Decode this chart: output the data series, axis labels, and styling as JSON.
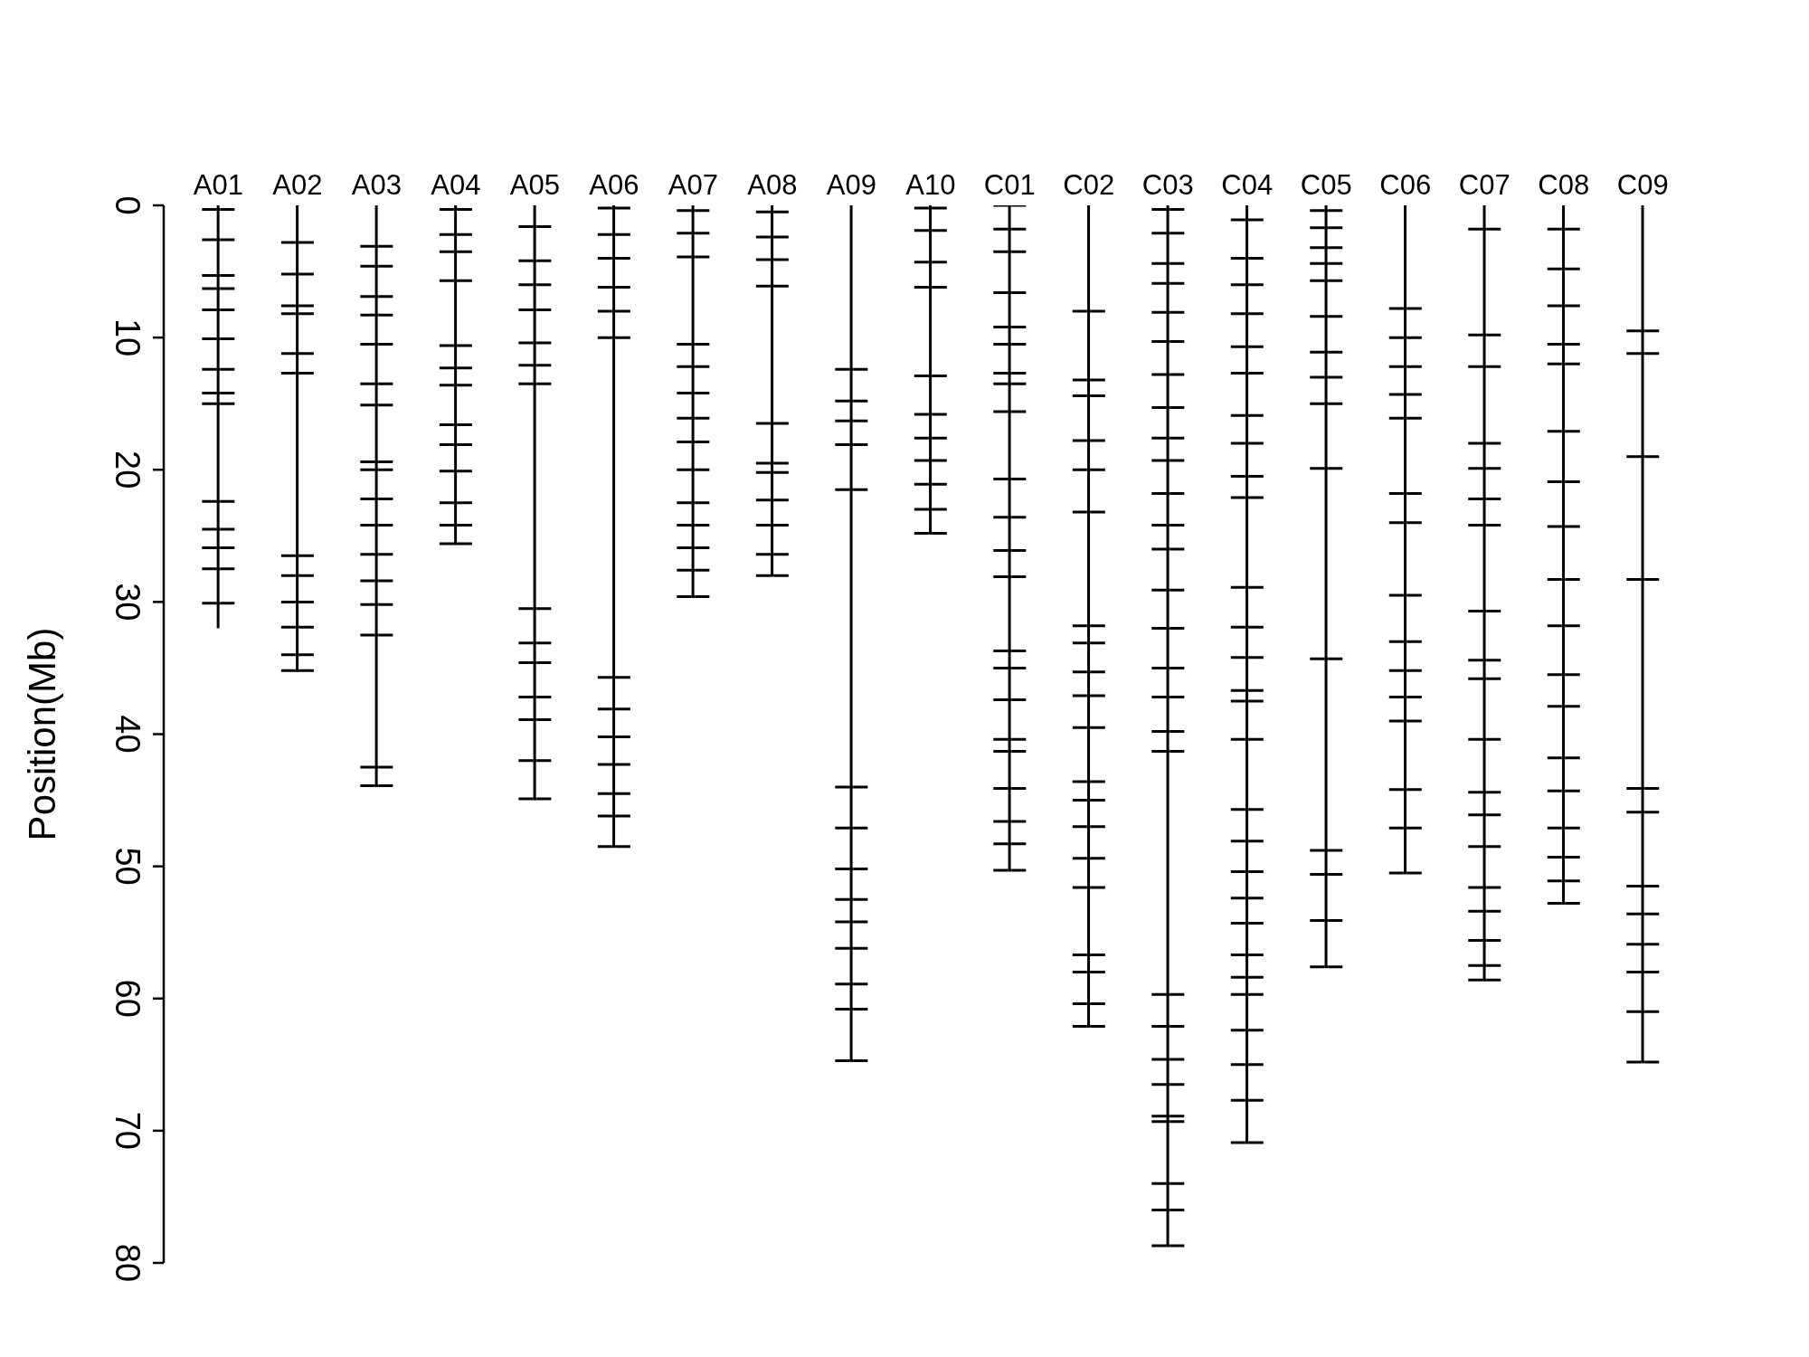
{
  "chart_data": {
    "type": "bar",
    "ylabel": "Position(Mb)",
    "categories": [
      "A01",
      "A02",
      "A03",
      "A04",
      "A05",
      "A06",
      "A07",
      "A08",
      "A09",
      "A10",
      "C01",
      "C02",
      "C03",
      "C04",
      "C05",
      "C06",
      "C07",
      "C08",
      "C09"
    ],
    "ylim": [
      80,
      0
    ],
    "yticks": [
      0,
      10,
      20,
      30,
      40,
      50,
      60,
      70,
      80
    ],
    "series": [
      {
        "color": "#000000",
        "values": [
          32.0,
          35.2,
          43.9,
          25.6,
          44.9,
          48.5,
          29.6,
          28.0,
          64.7,
          24.8,
          50.3,
          62.1,
          78.7,
          70.9,
          57.6,
          50.5,
          58.6,
          52.8,
          64.8
        ]
      },
      {
        "type": "scatter",
        "color": "#000000",
        "x": [
          "A01",
          "A01",
          "A01",
          "A01",
          "A01",
          "A01",
          "A01",
          "A01",
          "A01",
          "A01",
          "A01",
          "A01",
          "A01",
          "A01",
          "A02",
          "A02",
          "A02",
          "A02",
          "A02",
          "A02",
          "A02",
          "A02",
          "A02",
          "A02",
          "A02",
          "A02",
          "A03",
          "A03",
          "A03",
          "A03",
          "A03",
          "A03",
          "A03",
          "A03",
          "A03",
          "A03",
          "A03",
          "A03",
          "A03",
          "A03",
          "A03",
          "A03",
          "A03",
          "A04",
          "A04",
          "A04",
          "A04",
          "A04",
          "A04",
          "A04",
          "A04",
          "A04",
          "A04",
          "A04",
          "A04",
          "A04",
          "A05",
          "A05",
          "A05",
          "A05",
          "A05",
          "A05",
          "A05",
          "A05",
          "A05",
          "A05",
          "A05",
          "A05",
          "A05",
          "A05",
          "A06",
          "A06",
          "A06",
          "A06",
          "A06",
          "A06",
          "A06",
          "A06",
          "A06",
          "A06",
          "A06",
          "A06",
          "A06",
          "A07",
          "A07",
          "A07",
          "A07",
          "A07",
          "A07",
          "A07",
          "A07",
          "A07",
          "A07",
          "A07",
          "A07",
          "A07",
          "A07",
          "A08",
          "A08",
          "A08",
          "A08",
          "A08",
          "A08",
          "A08",
          "A08",
          "A08",
          "A08",
          "A08",
          "A09",
          "A09",
          "A09",
          "A09",
          "A09",
          "A09",
          "A09",
          "A09",
          "A09",
          "A09",
          "A09",
          "A09",
          "A09",
          "A09",
          "A10",
          "A10",
          "A10",
          "A10",
          "A10",
          "A10",
          "A10",
          "A10",
          "A10",
          "A10",
          "A10",
          "C01",
          "C01",
          "C01",
          "C01",
          "C01",
          "C01",
          "C01",
          "C01",
          "C01",
          "C01",
          "C01",
          "C01",
          "C01",
          "C01",
          "C01",
          "C01",
          "C01",
          "C01",
          "C01",
          "C01",
          "C01",
          "C01",
          "C02",
          "C02",
          "C02",
          "C02",
          "C02",
          "C02",
          "C02",
          "C02",
          "C02",
          "C02",
          "C02",
          "C02",
          "C02",
          "C02",
          "C02",
          "C02",
          "C02",
          "C02",
          "C02",
          "C02",
          "C03",
          "C03",
          "C03",
          "C03",
          "C03",
          "C03",
          "C03",
          "C03",
          "C03",
          "C03",
          "C03",
          "C03",
          "C03",
          "C03",
          "C03",
          "C03",
          "C03",
          "C03",
          "C03",
          "C03",
          "C03",
          "C03",
          "C03",
          "C03",
          "C03",
          "C03",
          "C03",
          "C03",
          "C04",
          "C04",
          "C04",
          "C04",
          "C04",
          "C04",
          "C04",
          "C04",
          "C04",
          "C04",
          "C04",
          "C04",
          "C04",
          "C04",
          "C04",
          "C04",
          "C04",
          "C04",
          "C04",
          "C04",
          "C04",
          "C04",
          "C04",
          "C04",
          "C04",
          "C04",
          "C04",
          "C04",
          "C05",
          "C05",
          "C05",
          "C05",
          "C05",
          "C05",
          "C05",
          "C05",
          "C05",
          "C05",
          "C05",
          "C05",
          "C05",
          "C05",
          "C05",
          "C06",
          "C06",
          "C06",
          "C06",
          "C06",
          "C06",
          "C06",
          "C06",
          "C06",
          "C06",
          "C06",
          "C06",
          "C06",
          "C06",
          "C06",
          "C07",
          "C07",
          "C07",
          "C07",
          "C07",
          "C07",
          "C07",
          "C07",
          "C07",
          "C07",
          "C07",
          "C07",
          "C07",
          "C07",
          "C07",
          "C07",
          "C07",
          "C07",
          "C07",
          "C08",
          "C08",
          "C08",
          "C08",
          "C08",
          "C08",
          "C08",
          "C08",
          "C08",
          "C08",
          "C08",
          "C08",
          "C08",
          "C08",
          "C08",
          "C08",
          "C08",
          "C08",
          "C09",
          "C09",
          "C09",
          "C09",
          "C09",
          "C09",
          "C09",
          "C09",
          "C09",
          "C09",
          "C09",
          "C09"
        ],
        "values": [
          0.3,
          2.6,
          5.3,
          6.3,
          7.9,
          10.1,
          12.4,
          14.2,
          15.0,
          22.4,
          24.5,
          25.9,
          27.5,
          30.1,
          2.8,
          5.2,
          7.6,
          8.2,
          11.2,
          12.7,
          26.5,
          28.0,
          30.0,
          31.9,
          34.0,
          35.2,
          3.1,
          4.6,
          6.9,
          8.3,
          10.5,
          13.5,
          15.1,
          19.4,
          20.0,
          22.2,
          24.2,
          26.4,
          28.4,
          30.2,
          32.5,
          42.5,
          43.9,
          0.3,
          2.2,
          3.5,
          5.7,
          10.6,
          12.3,
          13.6,
          16.6,
          18.1,
          20.1,
          22.5,
          24.2,
          25.6,
          1.6,
          4.2,
          6.0,
          7.9,
          10.4,
          12.1,
          13.5,
          30.5,
          33.1,
          34.6,
          37.2,
          38.9,
          42.0,
          44.9,
          0.2,
          2.2,
          4.0,
          6.2,
          8.0,
          10.0,
          35.7,
          38.1,
          40.2,
          42.3,
          44.5,
          46.2,
          48.5,
          0.4,
          2.1,
          3.9,
          10.5,
          12.2,
          14.2,
          16.1,
          17.9,
          20.0,
          22.5,
          24.2,
          25.9,
          27.6,
          29.6,
          0.5,
          2.4,
          4.1,
          6.1,
          16.5,
          19.5,
          20.2,
          22.3,
          24.2,
          26.4,
          28.0,
          12.4,
          14.8,
          16.3,
          18.1,
          21.5,
          44.0,
          47.1,
          50.2,
          52.5,
          54.2,
          56.2,
          58.9,
          60.8,
          64.7,
          0.2,
          1.9,
          4.3,
          6.2,
          12.9,
          15.8,
          17.6,
          19.3,
          21.1,
          23.0,
          24.8,
          0.0,
          1.8,
          3.5,
          6.6,
          9.2,
          10.5,
          12.7,
          13.5,
          15.6,
          20.7,
          23.6,
          26.1,
          28.1,
          33.7,
          35.0,
          37.4,
          40.4,
          41.3,
          44.1,
          46.6,
          48.3,
          50.3,
          8.0,
          13.2,
          14.4,
          17.8,
          20.0,
          23.2,
          31.8,
          33.1,
          35.3,
          37.1,
          39.5,
          43.6,
          45.0,
          47.0,
          49.4,
          51.6,
          56.7,
          58.0,
          60.4,
          62.1,
          0.3,
          2.1,
          4.4,
          5.9,
          8.1,
          10.3,
          12.8,
          15.3,
          17.6,
          19.3,
          21.8,
          24.2,
          26.0,
          29.1,
          32.0,
          35.0,
          37.2,
          39.8,
          41.3,
          59.7,
          62.1,
          64.6,
          66.5,
          68.9,
          69.3,
          74.0,
          76.0,
          78.7,
          1.1,
          4.0,
          6.0,
          8.2,
          10.7,
          12.7,
          15.9,
          18.0,
          20.5,
          22.1,
          28.9,
          31.9,
          34.2,
          36.7,
          37.5,
          40.4,
          45.7,
          48.1,
          50.4,
          52.4,
          54.3,
          56.7,
          58.4,
          59.7,
          62.4,
          65.0,
          67.7,
          70.9,
          0.4,
          1.7,
          3.2,
          4.4,
          5.7,
          8.4,
          11.1,
          13.0,
          15.0,
          19.9,
          34.3,
          48.8,
          50.6,
          54.1,
          57.6,
          7.8,
          10.0,
          12.2,
          14.3,
          16.1,
          21.8,
          24.0,
          29.5,
          33.0,
          35.2,
          37.2,
          39.0,
          44.2,
          47.1,
          50.5,
          1.8,
          9.8,
          12.2,
          18.0,
          19.9,
          22.2,
          24.2,
          30.7,
          34.4,
          35.8,
          40.4,
          44.4,
          46.1,
          48.5,
          51.6,
          53.4,
          55.6,
          57.5,
          58.6,
          1.8,
          4.8,
          7.6,
          10.5,
          12.0,
          17.1,
          20.9,
          24.3,
          28.3,
          31.8,
          35.5,
          37.9,
          41.8,
          44.3,
          47.1,
          49.3,
          51.1,
          52.8,
          9.5,
          11.2,
          19.0,
          28.3,
          44.1,
          45.9,
          51.5,
          53.6,
          55.9,
          58.0,
          61.0,
          64.8
        ]
      }
    ]
  }
}
